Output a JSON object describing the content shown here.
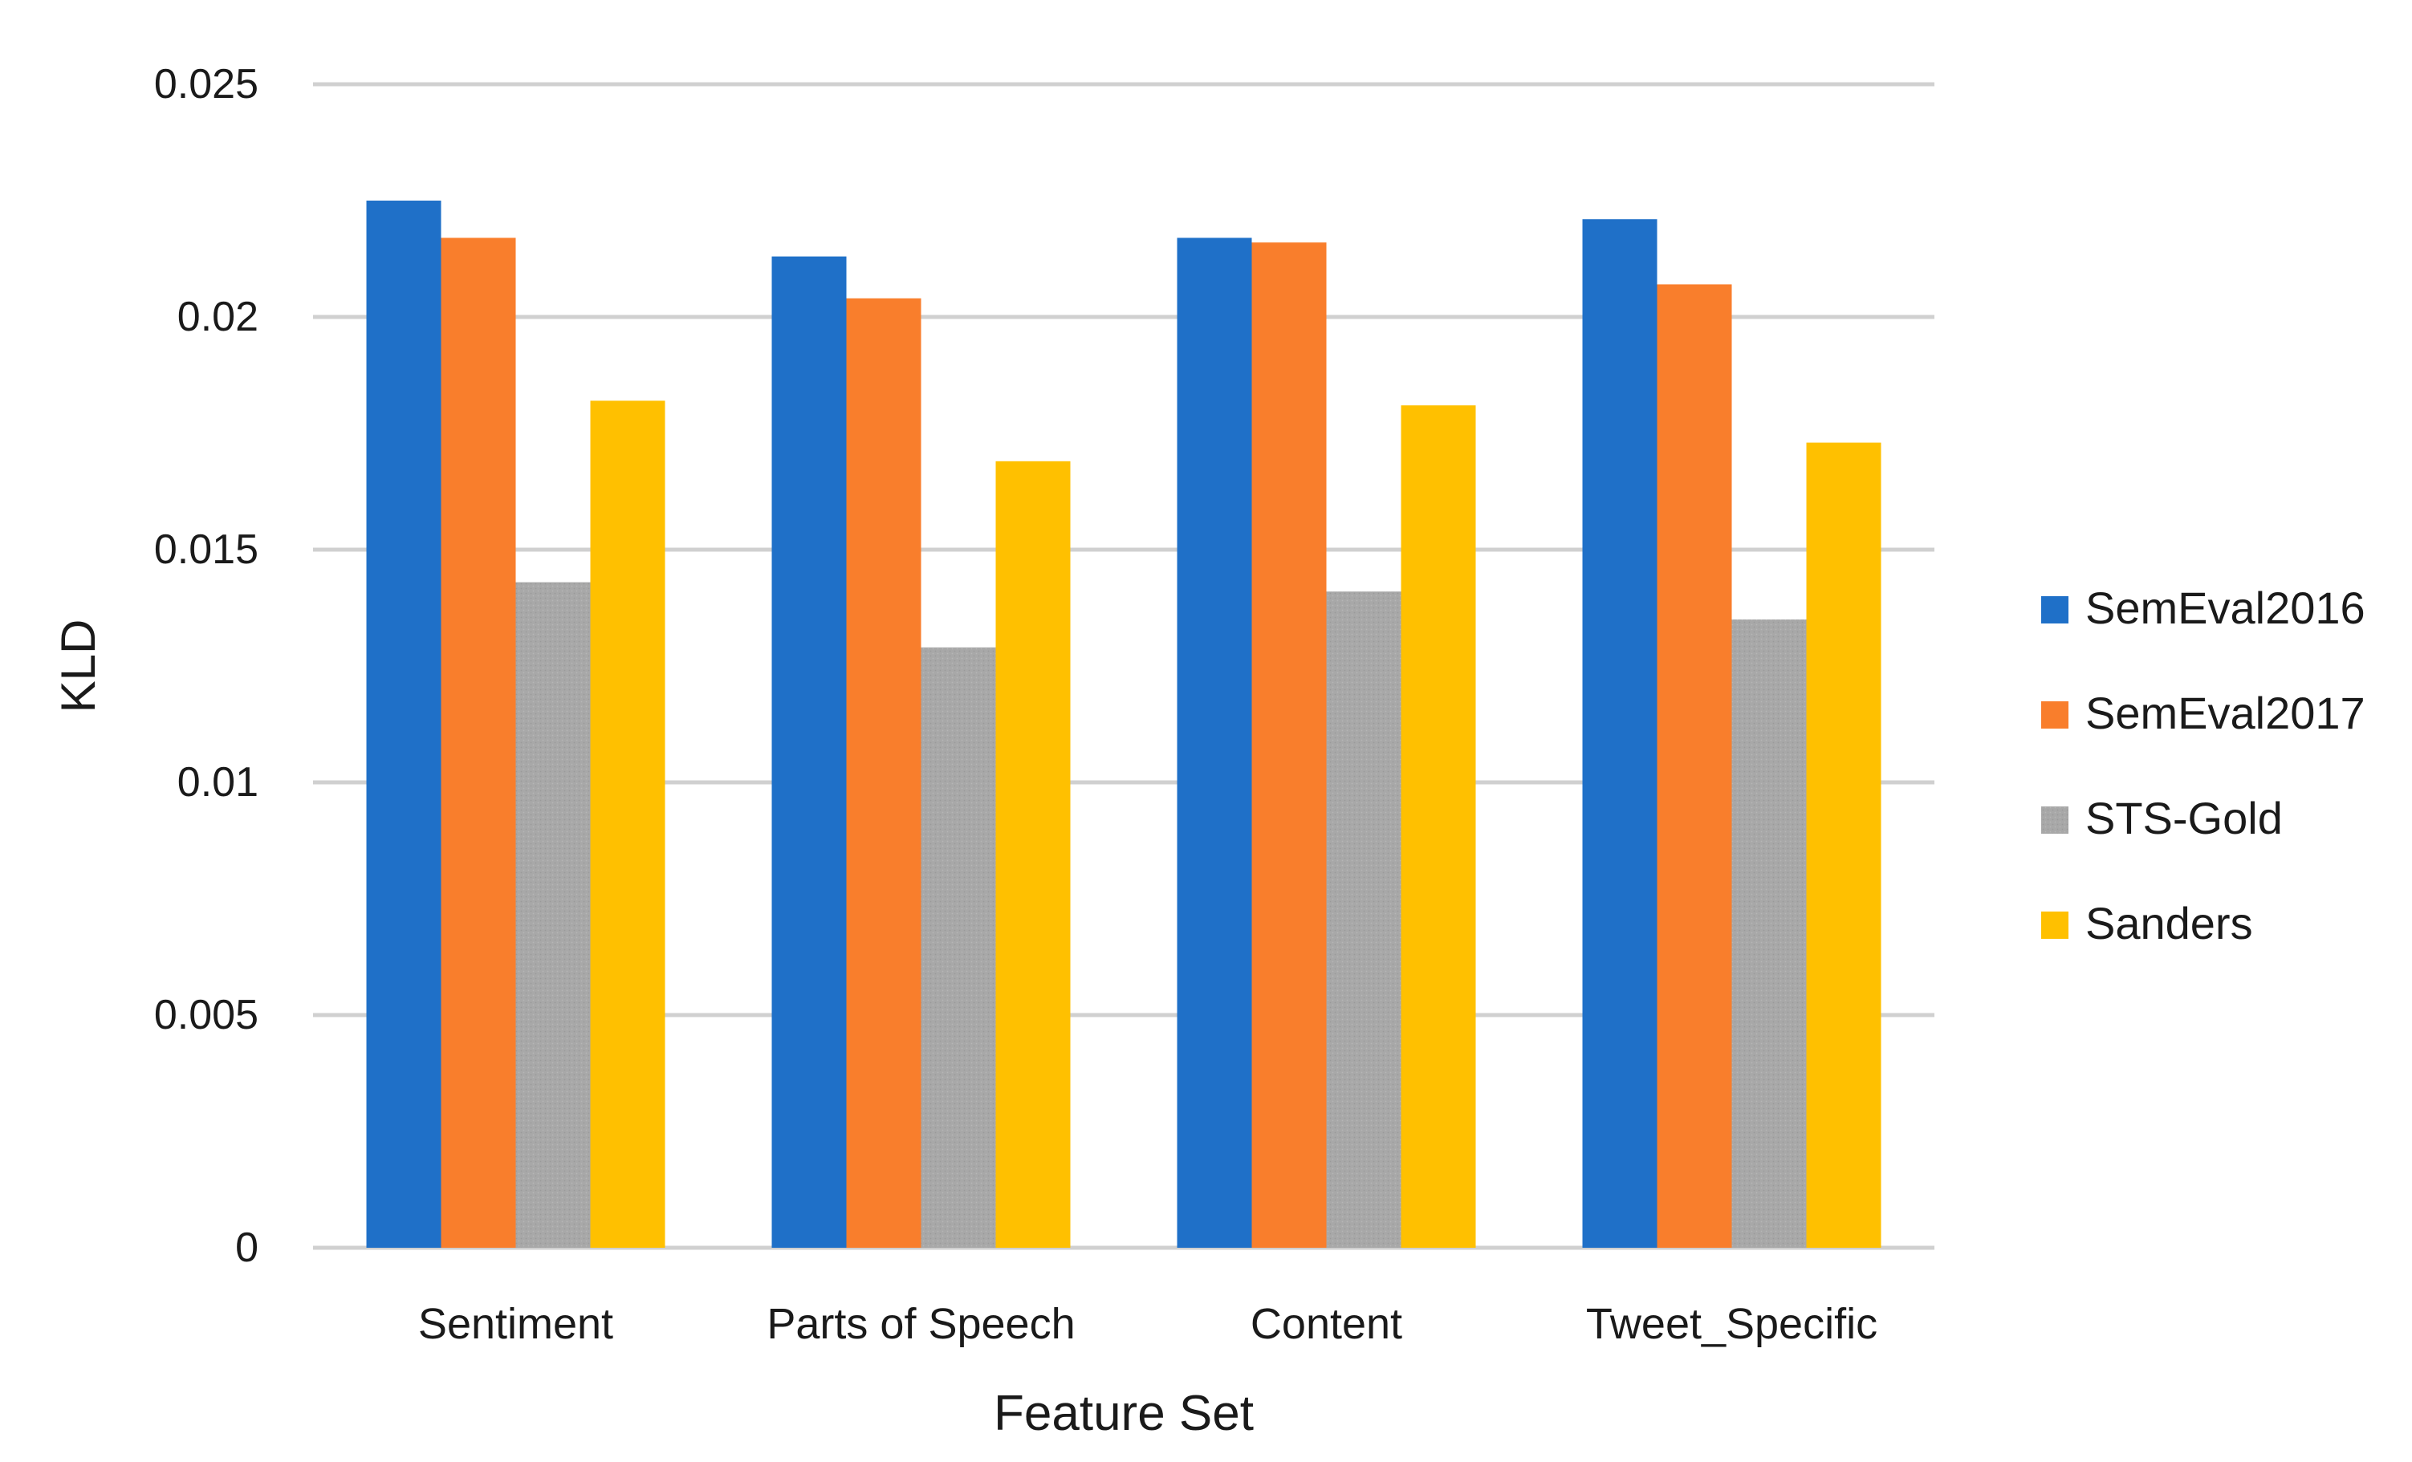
{
  "chart_data": {
    "type": "bar",
    "title": "",
    "xlabel": "Feature Set",
    "ylabel": "KLD",
    "categories": [
      "Sentiment",
      "Parts of Speech",
      "Content",
      "Tweet_Specific"
    ],
    "series": [
      {
        "name": "SemEval2016",
        "color": "#1f70c8",
        "values": [
          0.0225,
          0.0213,
          0.0217,
          0.0221
        ]
      },
      {
        "name": "SemEval2017",
        "color": "#f97e2c",
        "values": [
          0.0217,
          0.0204,
          0.0216,
          0.0207
        ]
      },
      {
        "name": "STS-Gold",
        "color": "#a8a8a8",
        "values": [
          0.0143,
          0.0129,
          0.0141,
          0.0135
        ]
      },
      {
        "name": "Sanders",
        "color": "#ffc000",
        "values": [
          0.0182,
          0.0169,
          0.0181,
          0.0173
        ]
      }
    ],
    "ylim": [
      0,
      0.025
    ],
    "yticks": [
      "0",
      "0.005",
      "0.01",
      "0.015",
      "0.02",
      "0.025"
    ],
    "grid": true,
    "legend_position": "right"
  }
}
